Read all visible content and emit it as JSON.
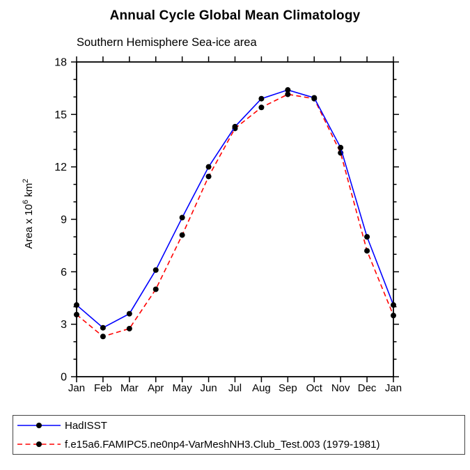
{
  "chart": {
    "title": "Annual Cycle Global Mean Climatology",
    "subtitle": "Southern Hemisphere Sea-ice area"
  },
  "legend": {
    "items": [
      {
        "label": "HadISST",
        "line_color": "#0000ff",
        "line_style": "solid",
        "marker": "black-filled-circle"
      },
      {
        "label": "f.e15a6.FAMIPC5.ne0np4-VarMeshNH3.Club_Test.003 (1979-1981)",
        "line_color": "#ff0000",
        "line_style": "dashed",
        "marker": "black-filled-circle"
      }
    ]
  },
  "chart_data": {
    "type": "line",
    "title": "Annual Cycle Global Mean Climatology",
    "subtitle": "Southern Hemisphere Sea-ice area",
    "categories": [
      "Jan",
      "Feb",
      "Mar",
      "Apr",
      "May",
      "Jun",
      "Jul",
      "Aug",
      "Sep",
      "Oct",
      "Nov",
      "Dec",
      "Jan"
    ],
    "xlabel": "",
    "ylabel": "Area x 10⁶ km²",
    "ylabel_parts": [
      "Area x 10",
      "6",
      " km",
      "2"
    ],
    "ylim": [
      0,
      18
    ],
    "yticks": [
      0,
      3,
      6,
      9,
      12,
      15,
      18
    ],
    "minor_tick_step": 1,
    "grid": false,
    "legend_position": "bottom-boxed",
    "axis_color": "#000000",
    "marker_color": "#000000",
    "series": [
      {
        "name": "HadISST",
        "color": "#0000ff",
        "line_style": "solid",
        "marker": "filled-circle",
        "values": [
          4.1,
          2.8,
          3.6,
          6.1,
          9.1,
          12.0,
          14.3,
          15.9,
          16.4,
          15.95,
          13.1,
          8.0,
          4.1
        ]
      },
      {
        "name": "f.e15a6.FAMIPC5.ne0np4-VarMeshNH3.Club_Test.003 (1979-1981)",
        "color": "#ff0000",
        "line_style": "dashed",
        "marker": "filled-circle",
        "values": [
          3.55,
          2.3,
          2.75,
          5.0,
          8.1,
          11.45,
          14.2,
          15.4,
          16.15,
          15.9,
          12.8,
          7.2,
          3.5
        ]
      }
    ]
  }
}
